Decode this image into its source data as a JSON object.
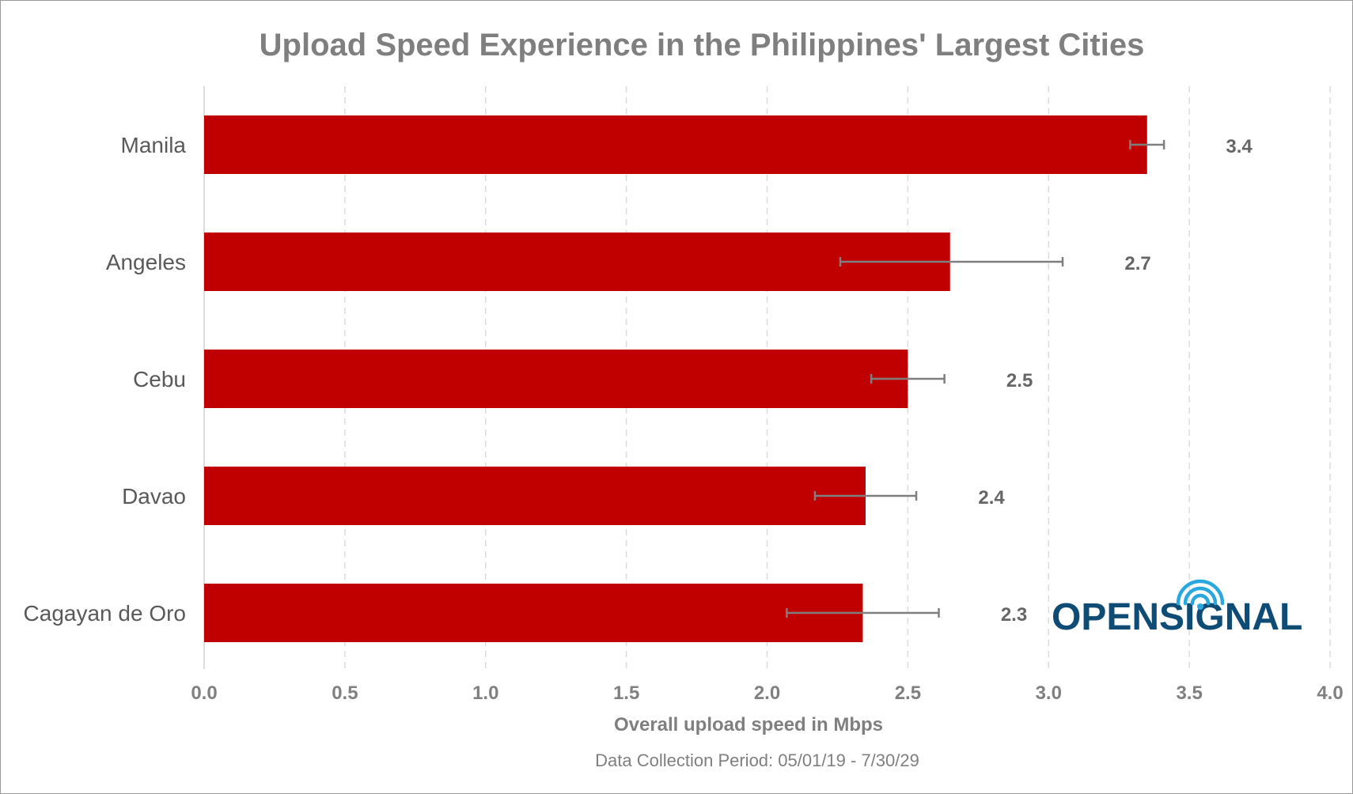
{
  "chart_data": {
    "type": "bar",
    "orientation": "horizontal",
    "title": "Upload Speed Experience in the Philippines' Largest Cities",
    "xlabel": "Overall upload speed in Mbps",
    "ylabel": "",
    "xlim": [
      0,
      4.0
    ],
    "x_ticks": [
      "0.0",
      "0.5",
      "1.0",
      "1.5",
      "2.0",
      "2.5",
      "3.0",
      "3.5",
      "4.0"
    ],
    "grid": "vertical dashed",
    "categories": [
      "Manila",
      "Angeles",
      "Cebu",
      "Davao",
      "Cagayan de Oro"
    ],
    "values": [
      3.35,
      2.65,
      2.5,
      2.35,
      2.34
    ],
    "value_labels": [
      "3.4",
      "2.7",
      "2.5",
      "2.4",
      "2.3"
    ],
    "error_low": [
      3.29,
      2.26,
      2.37,
      2.17,
      2.07
    ],
    "error_high": [
      3.41,
      3.05,
      2.63,
      2.53,
      2.61
    ],
    "bar_color": "#c00000",
    "error_color": "#7f7f7f",
    "note": "Data Collection Period: 05/01/19 - 7/30/29"
  },
  "logo": {
    "text": "OPENSIGNAL",
    "color": "#0f4c75",
    "accent_color": "#29a8e0"
  }
}
